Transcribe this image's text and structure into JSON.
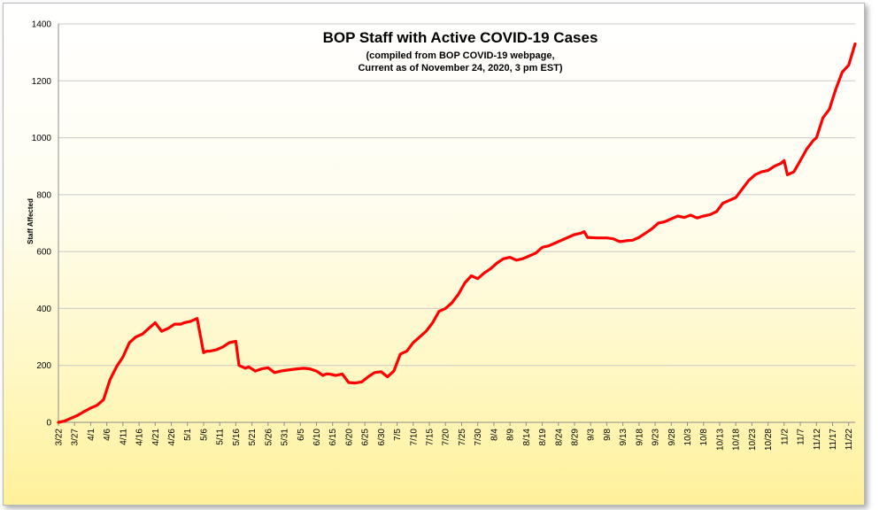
{
  "chart_data": {
    "type": "line",
    "title": "BOP Staff with Active COVID-19 Cases",
    "subtitle_lines": [
      "(compiled from BOP COVID-19 webpage,",
      "Current as of November 24, 2020, 3 pm EST)"
    ],
    "xlabel": "",
    "ylabel": "Staff Affected",
    "ylim": [
      0,
      1400
    ],
    "yticks": [
      0,
      200,
      400,
      600,
      800,
      1000,
      1200,
      1400
    ],
    "grid": true,
    "line_color": "#ff0000",
    "xlim": [
      "3/22",
      "11/24"
    ],
    "xtick_labels": [
      "3/22",
      "3/27",
      "4/1",
      "4/6",
      "4/11",
      "4/16",
      "4/21",
      "4/26",
      "5/1",
      "5/6",
      "5/11",
      "5/16",
      "5/21",
      "5/26",
      "5/31",
      "6/5",
      "6/10",
      "6/15",
      "6/20",
      "6/25",
      "6/30",
      "7/5",
      "7/10",
      "7/15",
      "7/20",
      "7/25",
      "7/30",
      "8/4",
      "8/9",
      "8/14",
      "8/19",
      "8/24",
      "8/29",
      "9/3",
      "9/8",
      "9/13",
      "9/18",
      "9/23",
      "9/28",
      "10/3",
      "10/8",
      "10/13",
      "10/18",
      "10/23",
      "10/28",
      "11/2",
      "11/7",
      "11/12",
      "11/17",
      "11/22"
    ],
    "series": [
      {
        "name": "",
        "x": [
          "3/22",
          "3/24",
          "3/26",
          "3/28",
          "3/30",
          "4/1",
          "4/3",
          "4/5",
          "4/7",
          "4/9",
          "4/11",
          "4/13",
          "4/15",
          "4/17",
          "4/19",
          "4/21",
          "4/23",
          "4/25",
          "4/27",
          "4/29",
          "4/30",
          "5/2",
          "5/4",
          "5/6",
          "5/7",
          "5/8",
          "5/10",
          "5/12",
          "5/14",
          "5/16",
          "5/17",
          "5/18",
          "5/19",
          "5/20",
          "5/22",
          "5/24",
          "5/26",
          "5/28",
          "5/30",
          "5/31",
          "6/2",
          "6/4",
          "6/6",
          "6/8",
          "6/10",
          "6/12",
          "6/13",
          "6/14",
          "6/16",
          "6/18",
          "6/20",
          "6/22",
          "6/24",
          "6/26",
          "6/28",
          "6/30",
          "7/2",
          "7/4",
          "7/5",
          "7/6",
          "7/8",
          "7/10",
          "7/12",
          "7/14",
          "7/16",
          "7/18",
          "7/20",
          "7/22",
          "7/24",
          "7/26",
          "7/28",
          "7/30",
          "8/1",
          "8/3",
          "8/5",
          "8/7",
          "8/9",
          "8/11",
          "8/13",
          "8/15",
          "8/17",
          "8/19",
          "8/21",
          "8/23",
          "8/25",
          "8/27",
          "8/29",
          "8/31",
          "9/1",
          "9/2",
          "9/5",
          "9/8",
          "9/10",
          "9/12",
          "9/14",
          "9/16",
          "9/18",
          "9/20",
          "9/22",
          "9/24",
          "9/26",
          "9/28",
          "9/30",
          "10/2",
          "10/4",
          "10/6",
          "10/8",
          "10/10",
          "10/12",
          "10/14",
          "10/16",
          "10/18",
          "10/20",
          "10/22",
          "10/24",
          "10/26",
          "10/28",
          "10/30",
          "11/1",
          "11/2",
          "11/3",
          "11/5",
          "11/7",
          "11/9",
          "11/11",
          "11/12",
          "11/14",
          "11/16",
          "11/18",
          "11/20",
          "11/22",
          "11/24"
        ],
        "y": [
          0,
          5,
          15,
          25,
          38,
          50,
          60,
          80,
          150,
          195,
          230,
          280,
          300,
          310,
          330,
          350,
          320,
          330,
          345,
          345,
          350,
          355,
          365,
          245,
          250,
          250,
          255,
          265,
          280,
          285,
          200,
          195,
          190,
          195,
          180,
          188,
          192,
          175,
          180,
          182,
          185,
          188,
          190,
          188,
          180,
          165,
          170,
          170,
          165,
          170,
          140,
          138,
          142,
          160,
          175,
          178,
          160,
          180,
          210,
          240,
          250,
          280,
          300,
          320,
          350,
          390,
          400,
          420,
          450,
          490,
          515,
          505,
          525,
          540,
          560,
          575,
          580,
          570,
          575,
          585,
          595,
          615,
          620,
          630,
          640,
          650,
          660,
          665,
          670,
          650,
          648,
          648,
          645,
          635,
          638,
          640,
          650,
          665,
          680,
          700,
          705,
          715,
          725,
          720,
          728,
          718,
          725,
          730,
          740,
          770,
          780,
          790,
          820,
          850,
          870,
          880,
          885,
          900,
          910,
          920,
          870,
          880,
          920,
          960,
          990,
          1000,
          1070,
          1100,
          1170,
          1230,
          1255,
          1330
        ]
      }
    ]
  }
}
